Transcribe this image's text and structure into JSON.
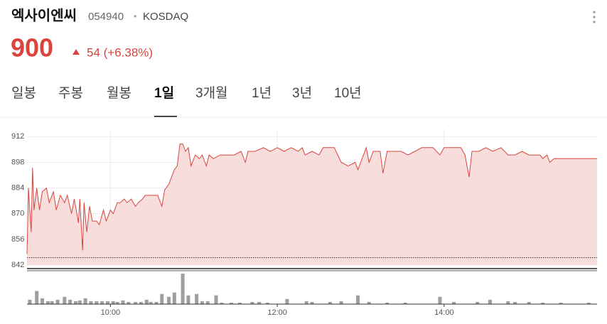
{
  "header": {
    "name": "엑사이엔씨",
    "code": "054940",
    "separator": "•",
    "market": "KOSDAQ",
    "price": "900",
    "change": "54 (+6.38%)"
  },
  "tabs": {
    "items": [
      "일봉",
      "주봉",
      "월봉",
      "1일",
      "3개월",
      "1년",
      "3년",
      "10년"
    ],
    "active": 3
  },
  "chart_data": [
    {
      "type": "area",
      "color": "#d9453d",
      "fill": "#f7dedd",
      "x": [
        "09:00",
        "09:01",
        "09:03",
        "09:04",
        "09:05",
        "09:07",
        "09:09",
        "09:11",
        "09:14",
        "09:16",
        "09:19",
        "09:21",
        "09:24",
        "09:27",
        "09:29",
        "09:32",
        "09:34",
        "09:37",
        "09:38",
        "09:40",
        "09:41",
        "09:43",
        "09:45",
        "09:47",
        "09:50",
        "09:52",
        "09:55",
        "09:57",
        "10:00",
        "10:02",
        "10:05",
        "10:07",
        "10:10",
        "10:12",
        "10:15",
        "10:18",
        "10:20",
        "10:23",
        "10:25",
        "10:28",
        "10:30",
        "10:34",
        "10:37",
        "10:39",
        "10:42",
        "10:44",
        "10:46",
        "10:48",
        "10:50",
        "10:52",
        "10:54",
        "10:56",
        "10:58",
        "11:01",
        "11:04",
        "11:06",
        "11:09",
        "11:11",
        "11:14",
        "11:19",
        "11:24",
        "11:29",
        "11:34",
        "11:37",
        "11:39",
        "11:44",
        "11:50",
        "11:55",
        "12:00",
        "12:05",
        "12:10",
        "12:15",
        "12:18",
        "12:20",
        "12:25",
        "12:30",
        "12:33",
        "12:35",
        "12:41",
        "12:46",
        "12:51",
        "12:56",
        "12:58",
        "13:01",
        "13:04",
        "13:06",
        "13:09",
        "13:14",
        "13:16",
        "13:19",
        "13:24",
        "13:29",
        "13:34",
        "13:39",
        "13:44",
        "13:52",
        "13:57",
        "14:00",
        "14:07",
        "14:12",
        "14:15",
        "14:18",
        "14:20",
        "14:25",
        "14:30",
        "14:35",
        "14:41",
        "14:46",
        "14:51",
        "14:56",
        "15:01",
        "15:09",
        "15:11",
        "15:14",
        "15:16",
        "15:19",
        "15:24",
        "15:29",
        "15:50"
      ],
      "values": [
        848,
        884,
        860,
        895,
        872,
        884,
        872,
        882,
        884,
        876,
        882,
        872,
        880,
        876,
        880,
        870,
        878,
        865,
        878,
        850,
        876,
        860,
        874,
        866,
        866,
        864,
        872,
        866,
        872,
        870,
        876,
        876,
        878,
        876,
        878,
        874,
        876,
        878,
        880,
        880,
        880,
        880,
        874,
        883,
        886,
        890,
        894,
        896,
        908,
        908,
        904,
        906,
        896,
        902,
        900,
        902,
        896,
        902,
        900,
        902,
        902,
        902,
        904,
        898,
        904,
        904,
        906,
        904,
        906,
        904,
        906,
        904,
        906,
        902,
        904,
        902,
        906,
        906,
        906,
        898,
        896,
        898,
        894,
        900,
        906,
        898,
        904,
        904,
        892,
        904,
        904,
        904,
        902,
        904,
        906,
        906,
        902,
        906,
        906,
        906,
        902,
        890,
        904,
        904,
        906,
        904,
        906,
        902,
        902,
        904,
        902,
        902,
        900,
        902,
        898,
        900,
        900,
        900,
        900
      ],
      "ylim": [
        842,
        916
      ],
      "yticks": [
        842,
        856,
        870,
        884,
        898,
        912
      ],
      "reference_line": 846,
      "grid": true
    },
    {
      "type": "bar",
      "color": "#9e9e9e",
      "x": [
        "09:02",
        "09:07",
        "09:11",
        "09:15",
        "09:18",
        "09:22",
        "09:27",
        "09:31",
        "09:35",
        "09:38",
        "09:42",
        "09:46",
        "09:50",
        "09:54",
        "09:58",
        "10:02",
        "10:05",
        "10:09",
        "10:13",
        "10:18",
        "10:22",
        "10:26",
        "10:29",
        "10:33",
        "10:37",
        "10:42",
        "10:46",
        "10:52",
        "10:56",
        "11:02",
        "11:06",
        "11:10",
        "11:16",
        "11:20",
        "11:27",
        "11:33",
        "11:42",
        "11:47",
        "11:53",
        "12:07",
        "12:21",
        "12:25",
        "12:38",
        "12:46",
        "12:58",
        "13:06",
        "13:19",
        "13:32",
        "13:57",
        "14:07",
        "14:24",
        "14:33",
        "14:46",
        "14:51",
        "15:01",
        "15:11",
        "15:24",
        "15:44"
      ],
      "values": [
        6,
        18,
        8,
        4,
        4,
        6,
        10,
        6,
        4,
        5,
        8,
        4,
        4,
        4,
        4,
        4,
        3,
        5,
        3,
        3,
        3,
        6,
        3,
        3,
        14,
        10,
        16,
        42,
        12,
        14,
        4,
        4,
        12,
        2,
        2,
        2,
        3,
        3,
        2,
        7,
        4,
        3,
        3,
        4,
        12,
        3,
        2,
        2,
        10,
        3,
        3,
        6,
        4,
        3,
        3,
        2,
        2,
        2
      ],
      "ylim": [
        0,
        45
      ],
      "xlim": [
        "09:00",
        "15:50"
      ],
      "xticks": [
        "10:00",
        "12:00",
        "14:00"
      ]
    }
  ]
}
